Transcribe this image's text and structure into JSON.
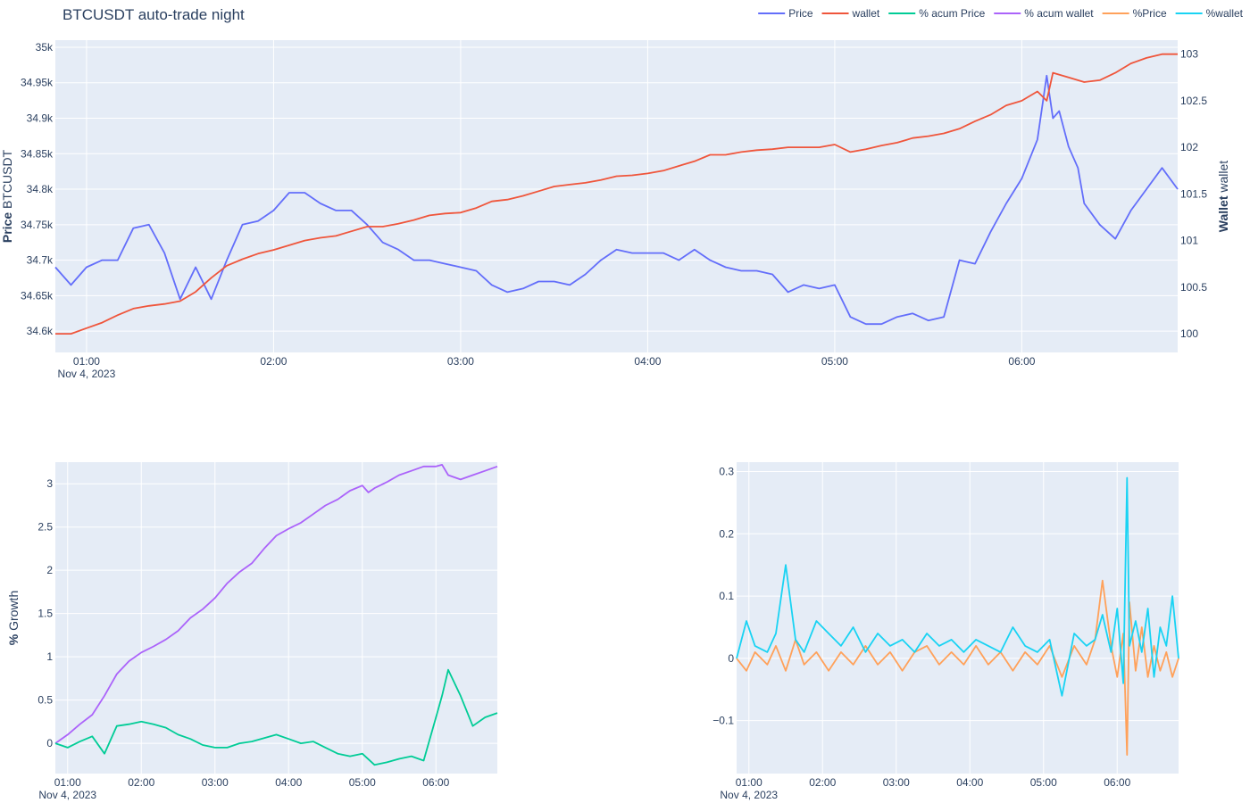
{
  "chart_data": {
    "title": "BTCUSDT auto-trade night",
    "legend": {
      "position": "top-right",
      "entries": [
        {
          "name": "Price",
          "color": "#636efa"
        },
        {
          "name": "wallet",
          "color": "#ef553b"
        },
        {
          "name": "% acum Price",
          "color": "#00cc96"
        },
        {
          "name": "% acum wallet",
          "color": "#ab63fa"
        },
        {
          "name": "%Price",
          "color": "#ffa15a"
        },
        {
          "name": "%wallet",
          "color": "#19d3f3"
        }
      ]
    },
    "background": "#e5ecf6",
    "grid": true,
    "time_axis": {
      "start": "00:50",
      "end": "06:50",
      "ticks": [
        "01:00",
        "02:00",
        "03:00",
        "04:00",
        "05:00",
        "06:00"
      ],
      "date_label": "Nov 4, 2023"
    },
    "panels": [
      {
        "id": "top",
        "type": "line",
        "ylabel_left": {
          "bold": "Price",
          "rest": " BTCUSDT"
        },
        "ylabel_right": {
          "bold": "Wallet",
          "rest": " wallet"
        },
        "ylim_left": [
          34570,
          35010
        ],
        "ylim_right": [
          99.8,
          103.15
        ],
        "yticks_left": [
          {
            "value": 34600,
            "label": "34.6k"
          },
          {
            "value": 34650,
            "label": "34.65k"
          },
          {
            "value": 34700,
            "label": "34.7k"
          },
          {
            "value": 34750,
            "label": "34.75k"
          },
          {
            "value": 34800,
            "label": "34.8k"
          },
          {
            "value": 34850,
            "label": "34.85k"
          },
          {
            "value": 34900,
            "label": "34.9k"
          },
          {
            "value": 34950,
            "label": "34.95k"
          },
          {
            "value": 35000,
            "label": "35k"
          }
        ],
        "yticks_right": [
          {
            "value": 100,
            "label": "100"
          },
          {
            "value": 100.5,
            "label": "100.5"
          },
          {
            "value": 101,
            "label": "101"
          },
          {
            "value": 101.5,
            "label": "101.5"
          },
          {
            "value": 102,
            "label": "102"
          },
          {
            "value": 102.5,
            "label": "102.5"
          },
          {
            "value": 103,
            "label": "103"
          }
        ],
        "series": [
          {
            "name": "Price",
            "color": "#636efa",
            "axis": "left",
            "x": [
              "00:50",
              "00:55",
              "01:00",
              "01:05",
              "01:10",
              "01:15",
              "01:20",
              "01:25",
              "01:30",
              "01:35",
              "01:40",
              "01:45",
              "01:50",
              "01:55",
              "02:00",
              "02:05",
              "02:10",
              "02:15",
              "02:20",
              "02:25",
              "02:30",
              "02:35",
              "02:40",
              "02:45",
              "02:50",
              "02:55",
              "03:00",
              "03:05",
              "03:10",
              "03:15",
              "03:20",
              "03:25",
              "03:30",
              "03:35",
              "03:40",
              "03:45",
              "03:50",
              "03:55",
              "04:00",
              "04:05",
              "04:10",
              "04:15",
              "04:20",
              "04:25",
              "04:30",
              "04:35",
              "04:40",
              "04:45",
              "04:50",
              "04:55",
              "05:00",
              "05:05",
              "05:10",
              "05:15",
              "05:20",
              "05:25",
              "05:30",
              "05:35",
              "05:40",
              "05:45",
              "05:50",
              "05:55",
              "06:00",
              "06:05",
              "06:08",
              "06:10",
              "06:12",
              "06:15",
              "06:18",
              "06:20",
              "06:25",
              "06:30",
              "06:35",
              "06:40",
              "06:45",
              "06:50"
            ],
            "y": [
              34690,
              34665,
              34690,
              34700,
              34700,
              34745,
              34750,
              34710,
              34645,
              34690,
              34645,
              34700,
              34750,
              34755,
              34770,
              34795,
              34795,
              34780,
              34770,
              34770,
              34750,
              34725,
              34715,
              34700,
              34700,
              34695,
              34690,
              34685,
              34665,
              34655,
              34660,
              34670,
              34670,
              34665,
              34680,
              34700,
              34715,
              34710,
              34710,
              34710,
              34700,
              34715,
              34700,
              34690,
              34685,
              34685,
              34680,
              34655,
              34665,
              34660,
              34665,
              34620,
              34610,
              34610,
              34620,
              34625,
              34615,
              34620,
              34700,
              34695,
              34740,
              34780,
              34815,
              34870,
              34960,
              34900,
              34910,
              34860,
              34830,
              34780,
              34750,
              34730,
              34770,
              34800,
              34830,
              34800
            ]
          },
          {
            "name": "wallet",
            "color": "#ef553b",
            "axis": "right",
            "x": [
              "00:50",
              "00:55",
              "01:00",
              "01:05",
              "01:10",
              "01:15",
              "01:20",
              "01:25",
              "01:30",
              "01:35",
              "01:40",
              "01:45",
              "01:50",
              "01:55",
              "02:00",
              "02:05",
              "02:10",
              "02:15",
              "02:20",
              "02:25",
              "02:30",
              "02:35",
              "02:40",
              "02:45",
              "02:50",
              "02:55",
              "03:00",
              "03:05",
              "03:10",
              "03:15",
              "03:20",
              "03:25",
              "03:30",
              "03:35",
              "03:40",
              "03:45",
              "03:50",
              "03:55",
              "04:00",
              "04:05",
              "04:10",
              "04:15",
              "04:20",
              "04:25",
              "04:30",
              "04:35",
              "04:40",
              "04:45",
              "04:50",
              "04:55",
              "05:00",
              "05:05",
              "05:10",
              "05:15",
              "05:20",
              "05:25",
              "05:30",
              "05:35",
              "05:40",
              "05:45",
              "05:50",
              "05:55",
              "06:00",
              "06:05",
              "06:08",
              "06:10",
              "06:15",
              "06:20",
              "06:25",
              "06:30",
              "06:35",
              "06:40",
              "06:45",
              "06:50"
            ],
            "y": [
              100,
              100,
              100.06,
              100.12,
              100.2,
              100.27,
              100.3,
              100.32,
              100.35,
              100.45,
              100.6,
              100.73,
              100.8,
              100.86,
              100.9,
              100.95,
              101.0,
              101.03,
              101.05,
              101.1,
              101.15,
              101.15,
              101.18,
              101.22,
              101.27,
              101.29,
              101.3,
              101.35,
              101.42,
              101.44,
              101.48,
              101.53,
              101.58,
              101.6,
              101.62,
              101.65,
              101.69,
              101.7,
              101.72,
              101.75,
              101.8,
              101.85,
              101.92,
              101.92,
              101.95,
              101.97,
              101.98,
              102.0,
              102.0,
              102.0,
              102.03,
              101.95,
              101.98,
              102.02,
              102.05,
              102.1,
              102.12,
              102.15,
              102.2,
              102.28,
              102.35,
              102.45,
              102.5,
              102.6,
              102.5,
              102.8,
              102.75,
              102.7,
              102.72,
              102.8,
              102.9,
              102.96,
              103.0,
              103.0
            ]
          }
        ]
      },
      {
        "id": "bottom-left",
        "type": "line",
        "ylabel": {
          "bold": "%",
          "rest": " Growth"
        },
        "ylim": [
          -0.35,
          3.25
        ],
        "yticks": [
          {
            "value": 0,
            "label": "0"
          },
          {
            "value": 0.5,
            "label": "0.5"
          },
          {
            "value": 1,
            "label": "1"
          },
          {
            "value": 1.5,
            "label": "1.5"
          },
          {
            "value": 2,
            "label": "2"
          },
          {
            "value": 2.5,
            "label": "2.5"
          },
          {
            "value": 3,
            "label": "3"
          }
        ],
        "series": [
          {
            "name": "% acum wallet",
            "color": "#ab63fa",
            "x": [
              "00:50",
              "01:00",
              "01:10",
              "01:20",
              "01:30",
              "01:40",
              "01:50",
              "02:00",
              "02:10",
              "02:20",
              "02:30",
              "02:40",
              "02:50",
              "03:00",
              "03:10",
              "03:20",
              "03:30",
              "03:40",
              "03:50",
              "04:00",
              "04:10",
              "04:20",
              "04:30",
              "04:40",
              "04:50",
              "05:00",
              "05:05",
              "05:10",
              "05:20",
              "05:30",
              "05:40",
              "05:50",
              "06:00",
              "06:05",
              "06:10",
              "06:20",
              "06:30",
              "06:40",
              "06:50"
            ],
            "y": [
              0,
              0.1,
              0.22,
              0.33,
              0.55,
              0.8,
              0.95,
              1.05,
              1.12,
              1.2,
              1.3,
              1.45,
              1.55,
              1.68,
              1.85,
              1.98,
              2.08,
              2.25,
              2.4,
              2.48,
              2.55,
              2.65,
              2.75,
              2.82,
              2.92,
              2.98,
              2.9,
              2.95,
              3.02,
              3.1,
              3.15,
              3.2,
              3.2,
              3.22,
              3.1,
              3.05,
              3.1,
              3.15,
              3.2
            ]
          },
          {
            "name": "% acum Price",
            "color": "#00cc96",
            "x": [
              "00:50",
              "01:00",
              "01:10",
              "01:20",
              "01:30",
              "01:40",
              "01:50",
              "02:00",
              "02:10",
              "02:20",
              "02:30",
              "02:40",
              "02:50",
              "03:00",
              "03:10",
              "03:20",
              "03:30",
              "03:40",
              "03:50",
              "04:00",
              "04:10",
              "04:20",
              "04:30",
              "04:40",
              "04:50",
              "05:00",
              "05:10",
              "05:20",
              "05:30",
              "05:40",
              "05:50",
              "06:00",
              "06:05",
              "06:10",
              "06:20",
              "06:30",
              "06:40",
              "06:50"
            ],
            "y": [
              0,
              -0.05,
              0.02,
              0.08,
              -0.12,
              0.2,
              0.22,
              0.25,
              0.22,
              0.18,
              0.1,
              0.05,
              -0.02,
              -0.05,
              -0.05,
              0.0,
              0.02,
              0.06,
              0.1,
              0.05,
              0.0,
              0.02,
              -0.05,
              -0.12,
              -0.15,
              -0.12,
              -0.25,
              -0.22,
              -0.18,
              -0.15,
              -0.2,
              0.3,
              0.55,
              0.85,
              0.55,
              0.2,
              0.3,
              0.35
            ]
          }
        ]
      },
      {
        "id": "bottom-right",
        "type": "line",
        "ylim": [
          -0.185,
          0.315
        ],
        "yticks": [
          {
            "value": -0.1,
            "label": "−0.1"
          },
          {
            "value": 0,
            "label": "0"
          },
          {
            "value": 0.1,
            "label": "0.1"
          },
          {
            "value": 0.2,
            "label": "0.2"
          },
          {
            "value": 0.3,
            "label": "0.3"
          }
        ],
        "series": [
          {
            "name": "%Price",
            "color": "#ffa15a",
            "x": [
              "00:50",
              "00:58",
              "01:05",
              "01:15",
              "01:22",
              "01:30",
              "01:38",
              "01:45",
              "01:55",
              "02:05",
              "02:15",
              "02:25",
              "02:35",
              "02:45",
              "02:55",
              "03:05",
              "03:15",
              "03:25",
              "03:35",
              "03:45",
              "03:55",
              "04:05",
              "04:15",
              "04:25",
              "04:35",
              "04:45",
              "04:55",
              "05:05",
              "05:15",
              "05:25",
              "05:35",
              "05:42",
              "05:48",
              "05:55",
              "06:00",
              "06:05",
              "06:08",
              "06:10",
              "06:15",
              "06:20",
              "06:25",
              "06:30",
              "06:35",
              "06:40",
              "06:45",
              "06:50"
            ],
            "y": [
              0,
              -0.02,
              0.01,
              -0.01,
              0.02,
              -0.02,
              0.03,
              -0.01,
              0.01,
              -0.02,
              0.01,
              -0.01,
              0.02,
              -0.01,
              0.01,
              -0.02,
              0.01,
              0.02,
              -0.01,
              0.01,
              -0.01,
              0.02,
              -0.01,
              0.01,
              -0.02,
              0.01,
              -0.01,
              0.02,
              -0.03,
              0.02,
              -0.01,
              0.03,
              0.125,
              0.02,
              -0.03,
              0.04,
              -0.155,
              0.09,
              -0.02,
              0.05,
              -0.03,
              0.02,
              -0.02,
              0.01,
              -0.03,
              0.0
            ]
          },
          {
            "name": "%wallet",
            "color": "#19d3f3",
            "x": [
              "00:50",
              "00:58",
              "01:05",
              "01:15",
              "01:22",
              "01:30",
              "01:38",
              "01:45",
              "01:55",
              "02:05",
              "02:15",
              "02:25",
              "02:35",
              "02:45",
              "02:55",
              "03:05",
              "03:15",
              "03:25",
              "03:35",
              "03:45",
              "03:55",
              "04:05",
              "04:15",
              "04:25",
              "04:35",
              "04:45",
              "04:55",
              "05:05",
              "05:15",
              "05:25",
              "05:35",
              "05:42",
              "05:48",
              "05:55",
              "06:00",
              "06:05",
              "06:08",
              "06:10",
              "06:15",
              "06:20",
              "06:25",
              "06:30",
              "06:35",
              "06:40",
              "06:45",
              "06:50"
            ],
            "y": [
              0,
              0.06,
              0.02,
              0.01,
              0.04,
              0.15,
              0.03,
              0.01,
              0.06,
              0.04,
              0.02,
              0.05,
              0.01,
              0.04,
              0.02,
              0.03,
              0.01,
              0.04,
              0.02,
              0.03,
              0.01,
              0.03,
              0.02,
              0.01,
              0.05,
              0.02,
              0.01,
              0.03,
              -0.06,
              0.04,
              0.02,
              0.03,
              0.07,
              0.01,
              0.08,
              -0.04,
              0.29,
              0.02,
              0.06,
              0.01,
              0.08,
              -0.03,
              0.05,
              0.02,
              0.1,
              0.0
            ]
          }
        ]
      }
    ]
  }
}
